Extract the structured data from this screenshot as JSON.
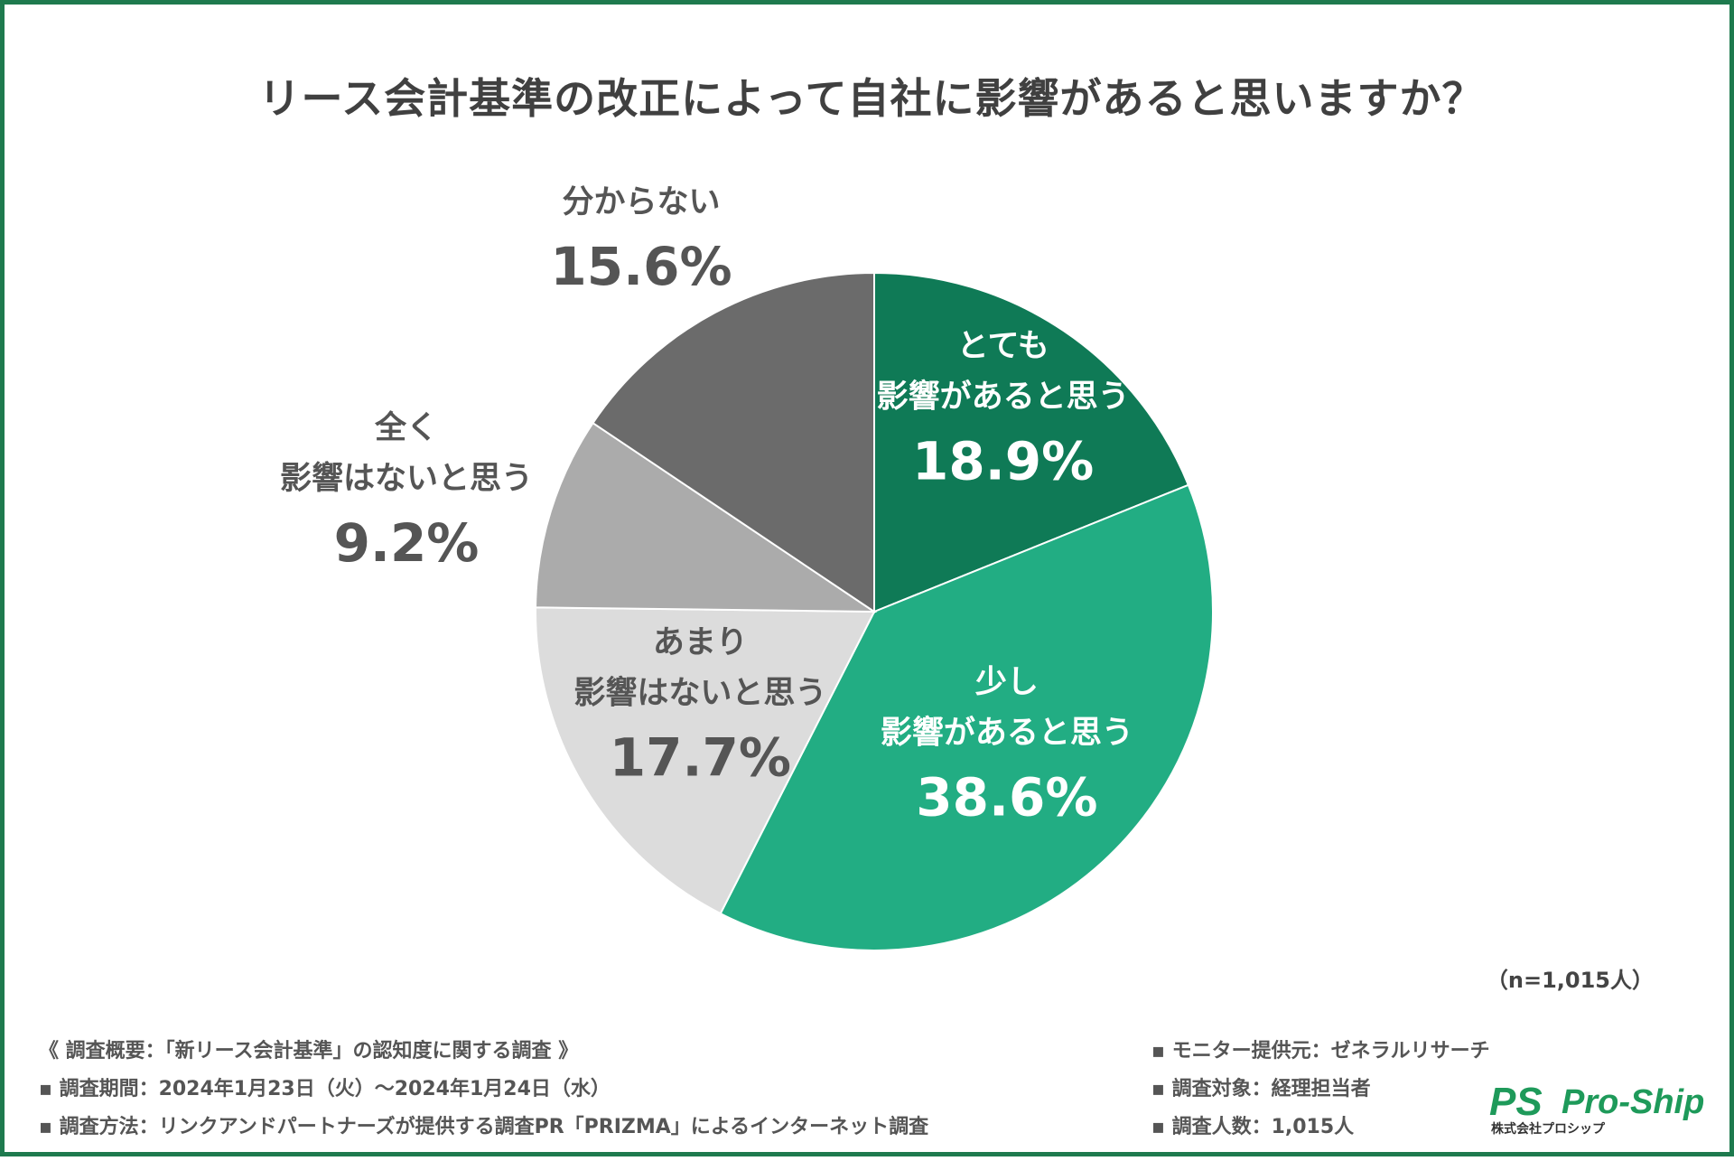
{
  "chart_data": {
    "type": "pie",
    "title": "リース会計基準の改正によって自社に影響があると思いますか？",
    "slices": [
      {
        "label_lines": [
          "とても",
          "影響があると思う"
        ],
        "value": 18.9,
        "display": "18.9%",
        "color": "#0f7a56",
        "text_color": "#ffffff",
        "label_side": "inside"
      },
      {
        "label_lines": [
          "少し",
          "影響があると思う"
        ],
        "value": 38.6,
        "display": "38.6%",
        "color": "#22ad83",
        "text_color": "#ffffff",
        "label_side": "inside"
      },
      {
        "label_lines": [
          "あまり",
          "影響はないと思う"
        ],
        "value": 17.7,
        "display": "17.7%",
        "color": "#dcdcdc",
        "text_color": "#555555",
        "label_side": "inside"
      },
      {
        "label_lines": [
          "全く",
          "影響はないと思う"
        ],
        "value": 9.2,
        "display": "9.2%",
        "color": "#ababab",
        "text_color": "#555555",
        "label_side": "outside"
      },
      {
        "label_lines": [
          "分からない"
        ],
        "value": 15.6,
        "display": "15.6%",
        "color": "#6b6b6b",
        "text_color": "#555555",
        "label_side": "outside"
      }
    ],
    "start_angle": "12 o'clock",
    "direction": "clockwise",
    "sample_note": "（n=1,015人）"
  },
  "footer": {
    "left": [
      "《 調査概要：「新リース会計基準」の認知度に関する調査 》",
      "▪ 調査期間：2024年1月23日（火）～2024年1月24日（水）",
      "▪ 調査方法：リンクアンドパートナーズが提供する調査PR「PRIZMA」によるインターネット調査"
    ],
    "right": [
      "▪ モニター提供元：ゼネラルリサーチ",
      "▪ 調査対象：経理担当者",
      "▪ 調査人数：1,015人"
    ]
  },
  "logo": {
    "mark": "PS",
    "name": "Pro-Ship",
    "sub": "株式会社プロシップ",
    "color": "#1e9a5a"
  }
}
